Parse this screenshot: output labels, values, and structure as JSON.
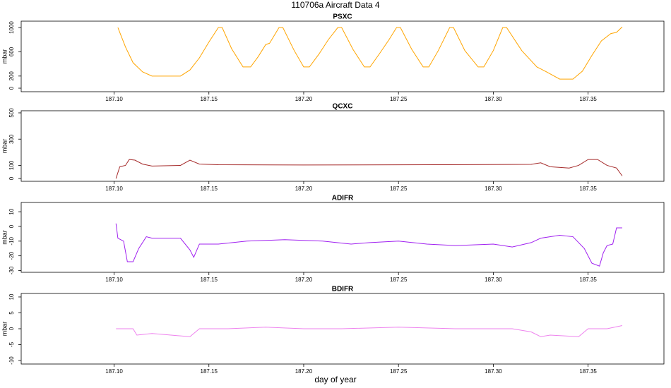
{
  "title": "110706a   Aircraft Data 4",
  "xlabel": "day of year",
  "chart_data": [
    {
      "type": "line",
      "title": "PSXC",
      "ylabel": "mbar",
      "xlim": [
        187.051,
        187.39
      ],
      "ylim": [
        -58,
        1105
      ],
      "xticks": [
        {
          "value": 187.1,
          "label": "187.10"
        },
        {
          "value": 187.15,
          "label": "187.15"
        },
        {
          "value": 187.2,
          "label": "187.20"
        },
        {
          "value": 187.25,
          "label": "187.25"
        },
        {
          "value": 187.3,
          "label": "187.30"
        },
        {
          "value": 187.35,
          "label": "187.35"
        }
      ],
      "yticks": [
        0,
        200,
        600,
        1000
      ],
      "series": [
        {
          "name": "PSXC",
          "color": "#ffa500",
          "x": [
            187.102,
            187.106,
            187.11,
            187.115,
            187.12,
            187.135,
            187.14,
            187.145,
            187.15,
            187.155,
            187.157,
            187.162,
            187.168,
            187.172,
            187.176,
            187.18,
            187.182,
            187.187,
            187.189,
            187.195,
            187.2,
            187.203,
            187.208,
            187.213,
            187.218,
            187.22,
            187.226,
            187.232,
            187.235,
            187.24,
            187.245,
            187.249,
            187.251,
            187.257,
            187.263,
            187.266,
            187.271,
            187.277,
            187.279,
            187.285,
            187.292,
            187.295,
            187.3,
            187.305,
            187.307,
            187.315,
            187.323,
            187.328,
            187.335,
            187.342,
            187.347,
            187.352,
            187.357,
            187.362,
            187.365,
            187.368
          ],
          "values": [
            1000,
            680,
            420,
            270,
            200,
            200,
            300,
            500,
            760,
            1000,
            1000,
            650,
            350,
            350,
            520,
            720,
            740,
            1000,
            1000,
            620,
            350,
            350,
            560,
            800,
            1000,
            1000,
            640,
            350,
            350,
            570,
            800,
            1000,
            1000,
            640,
            350,
            350,
            620,
            1000,
            1000,
            620,
            350,
            350,
            620,
            1000,
            1000,
            620,
            350,
            270,
            150,
            150,
            280,
            540,
            780,
            900,
            920,
            1010
          ]
        }
      ]
    },
    {
      "type": "line",
      "title": "QCXC",
      "ylabel": "mbar",
      "xlim": [
        187.051,
        187.39
      ],
      "ylim": [
        -21,
        516
      ],
      "xticks": [
        {
          "value": 187.1,
          "label": "187.10"
        },
        {
          "value": 187.15,
          "label": "187.15"
        },
        {
          "value": 187.2,
          "label": "187.20"
        },
        {
          "value": 187.25,
          "label": "187.25"
        },
        {
          "value": 187.3,
          "label": "187.30"
        },
        {
          "value": 187.35,
          "label": "187.35"
        }
      ],
      "yticks": [
        0,
        100,
        300,
        500
      ],
      "series": [
        {
          "name": "QCXC",
          "color": "#a52a2a",
          "x": [
            187.101,
            187.103,
            187.106,
            187.108,
            187.111,
            187.115,
            187.12,
            187.135,
            187.14,
            187.145,
            187.155,
            187.2,
            187.27,
            187.32,
            187.325,
            187.33,
            187.34,
            187.345,
            187.35,
            187.355,
            187.36,
            187.365,
            187.368
          ],
          "values": [
            0,
            90,
            100,
            145,
            140,
            110,
            95,
            100,
            140,
            110,
            105,
            103,
            105,
            108,
            120,
            90,
            80,
            100,
            145,
            145,
            100,
            80,
            20
          ]
        }
      ]
    },
    {
      "type": "line",
      "title": "ADIFR",
      "ylabel": "mbar",
      "xlim": [
        187.051,
        187.39
      ],
      "ylim": [
        -31.2,
        16.3
      ],
      "xticks": [
        {
          "value": 187.1,
          "label": "187.10"
        },
        {
          "value": 187.15,
          "label": "187.15"
        },
        {
          "value": 187.2,
          "label": "187.20"
        },
        {
          "value": 187.25,
          "label": "187.25"
        },
        {
          "value": 187.3,
          "label": "187.30"
        },
        {
          "value": 187.35,
          "label": "187.35"
        }
      ],
      "yticks": [
        10,
        0,
        -10,
        -20,
        -30
      ],
      "series": [
        {
          "name": "ADIFR",
          "color": "#a020f0",
          "x": [
            187.101,
            187.102,
            187.105,
            187.107,
            187.11,
            187.113,
            187.117,
            187.12,
            187.135,
            187.14,
            187.142,
            187.145,
            187.155,
            187.17,
            187.19,
            187.21,
            187.225,
            187.235,
            187.25,
            187.265,
            187.28,
            187.3,
            187.31,
            187.32,
            187.325,
            187.335,
            187.342,
            187.348,
            187.352,
            187.356,
            187.358,
            187.36,
            187.363,
            187.365,
            187.368
          ],
          "values": [
            2,
            -8,
            -10,
            -24,
            -24,
            -15,
            -7,
            -8,
            -8,
            -16,
            -21,
            -12,
            -12,
            -10,
            -9,
            -10,
            -12,
            -11,
            -10,
            -12,
            -13,
            -12,
            -14,
            -11,
            -8,
            -6,
            -7,
            -15,
            -25,
            -27,
            -18,
            -13,
            -12,
            -1,
            -1
          ]
        }
      ]
    },
    {
      "type": "line",
      "title": "BDIFR",
      "ylabel": "mbar",
      "xlim": [
        187.051,
        187.39
      ],
      "ylim": [
        -11.1,
        11.1
      ],
      "xticks": [
        {
          "value": 187.1,
          "label": "187.10"
        },
        {
          "value": 187.15,
          "label": "187.15"
        },
        {
          "value": 187.2,
          "label": "187.20"
        },
        {
          "value": 187.25,
          "label": "187.25"
        },
        {
          "value": 187.3,
          "label": "187.30"
        },
        {
          "value": 187.35,
          "label": "187.35"
        }
      ],
      "yticks": [
        10,
        5,
        0,
        -5,
        -10
      ],
      "series": [
        {
          "name": "BDIFR",
          "color": "#ee82ee",
          "x": [
            187.101,
            187.11,
            187.112,
            187.12,
            187.13,
            187.14,
            187.145,
            187.16,
            187.18,
            187.2,
            187.22,
            187.25,
            187.28,
            187.31,
            187.32,
            187.325,
            187.33,
            187.345,
            187.35,
            187.36,
            187.368
          ],
          "values": [
            0,
            0,
            -2,
            -1.5,
            -2,
            -2.5,
            0,
            0,
            0.5,
            0,
            0,
            0.5,
            0,
            0,
            -1,
            -2.5,
            -2,
            -2.5,
            0,
            0,
            1
          ]
        }
      ]
    }
  ]
}
